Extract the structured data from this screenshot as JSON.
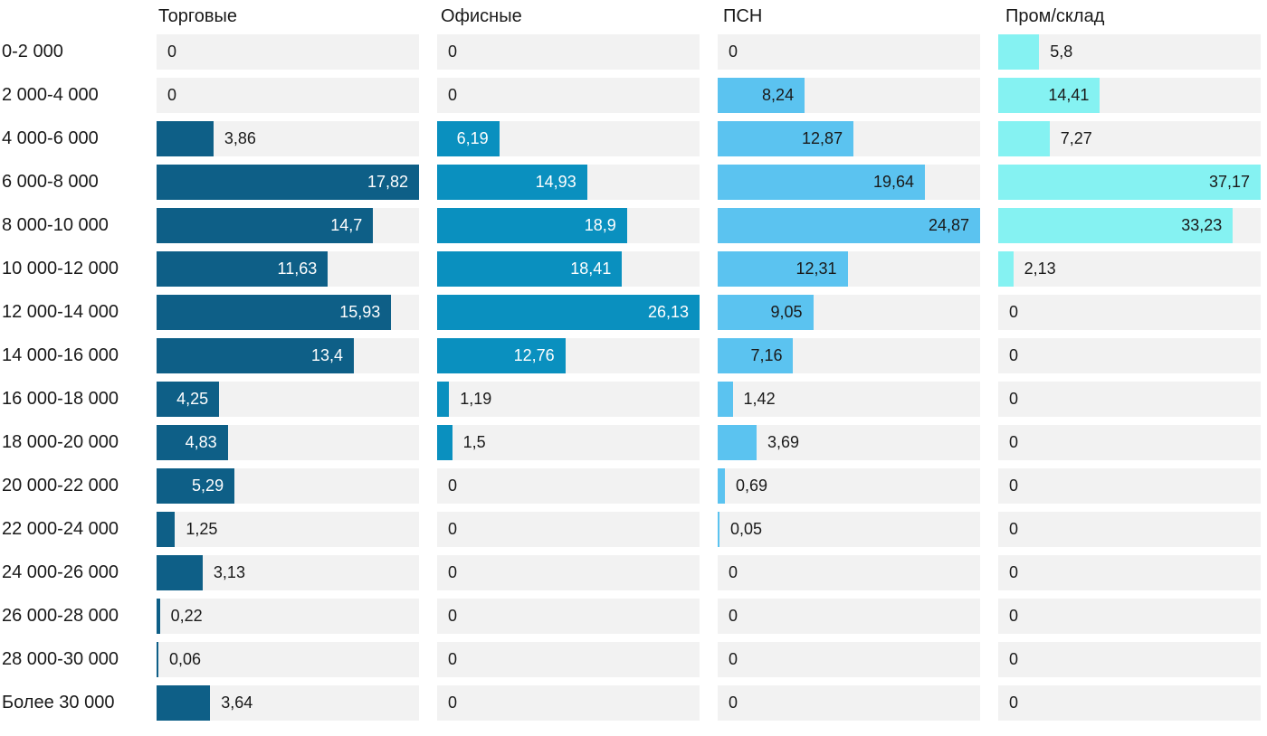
{
  "chart_data": {
    "type": "bar",
    "orientation": "horizontal",
    "scaling": "per-column-max",
    "decimal_separator": ",",
    "grid": false,
    "legend_position": "column-headers",
    "track_color": "#F2F2F2",
    "text_color": "#1A1A1A",
    "categories": [
      "0-2 000",
      "2 000-4 000",
      "4 000-6 000",
      "6 000-8 000",
      "8 000-10 000",
      "10 000-12 000",
      "12 000-14 000",
      "14 000-16 000",
      "16 000-18 000",
      "18 000-20 000",
      "20 000-22 000",
      "22 000-24 000",
      "24 000-26 000",
      "26 000-28 000",
      "28 000-30 000",
      "Более 30 000"
    ],
    "series": [
      {
        "name": "Торговые",
        "color": "#0E5F87",
        "label_color_inside": "#FFFFFF",
        "values": [
          0,
          0,
          3.86,
          17.82,
          14.7,
          11.63,
          15.93,
          13.4,
          4.25,
          4.83,
          5.29,
          1.25,
          3.13,
          0.22,
          0.06,
          3.64
        ]
      },
      {
        "name": "Офисные",
        "color": "#0A90BF",
        "label_color_inside": "#FFFFFF",
        "values": [
          0,
          0,
          6.19,
          14.93,
          18.9,
          18.41,
          26.13,
          12.76,
          1.19,
          1.5,
          0,
          0,
          0,
          0,
          0,
          0
        ]
      },
      {
        "name": "ПСН",
        "color": "#5BC3F0",
        "label_color_inside": "#1A1A1A",
        "values": [
          0,
          8.24,
          12.87,
          19.64,
          24.87,
          12.31,
          9.05,
          7.16,
          1.42,
          3.69,
          0.69,
          0.05,
          0,
          0,
          0,
          0
        ]
      },
      {
        "name": "Пром/склад",
        "color": "#85F2F2",
        "label_color_inside": "#1A1A1A",
        "values": [
          5.8,
          14.41,
          7.27,
          37.17,
          33.23,
          2.13,
          0,
          0,
          0,
          0,
          0,
          0,
          0,
          0,
          0,
          0
        ]
      }
    ]
  }
}
